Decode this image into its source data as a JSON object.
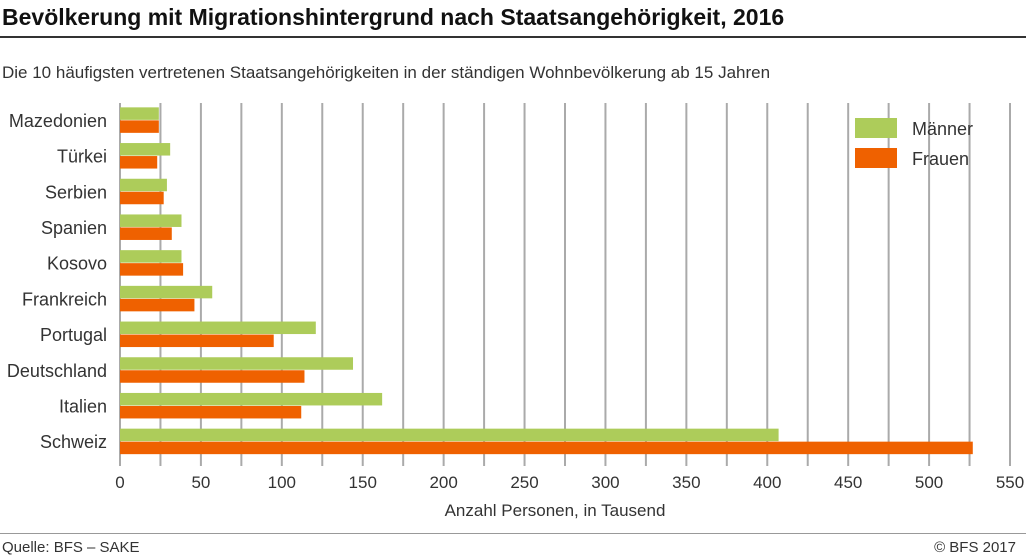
{
  "title": "Bevölkerung mit Migrationshintergrund nach Staatsangehörigkeit, 2016",
  "subtitle": "Die 10 häufigsten vertretenen Staatsangehörigkeiten in der ständigen Wohnbevölkerung ab 15 Jahren",
  "source": "Quelle: BFS – SAKE",
  "copyright": "© BFS 2017",
  "chart_data": {
    "type": "bar",
    "orientation": "horizontal",
    "categories": [
      "Mazedonien",
      "Türkei",
      "Serbien",
      "Spanien",
      "Kosovo",
      "Frankreich",
      "Portugal",
      "Deutschland",
      "Italien",
      "Schweiz"
    ],
    "series": [
      {
        "name": "Männer",
        "color": "#adcc5a",
        "values": [
          24,
          31,
          29,
          38,
          38,
          57,
          121,
          144,
          162,
          407
        ]
      },
      {
        "name": "Frauen",
        "color": "#ef6100",
        "values": [
          24,
          23,
          27,
          32,
          39,
          46,
          95,
          114,
          112,
          527
        ]
      }
    ],
    "xlabel": "Anzahl Personen, in Tausend",
    "xlim": [
      0,
      550
    ],
    "xticks": [
      0,
      50,
      100,
      150,
      200,
      250,
      300,
      350,
      400,
      450,
      500,
      550
    ],
    "grid": true,
    "legend": "top-right"
  }
}
